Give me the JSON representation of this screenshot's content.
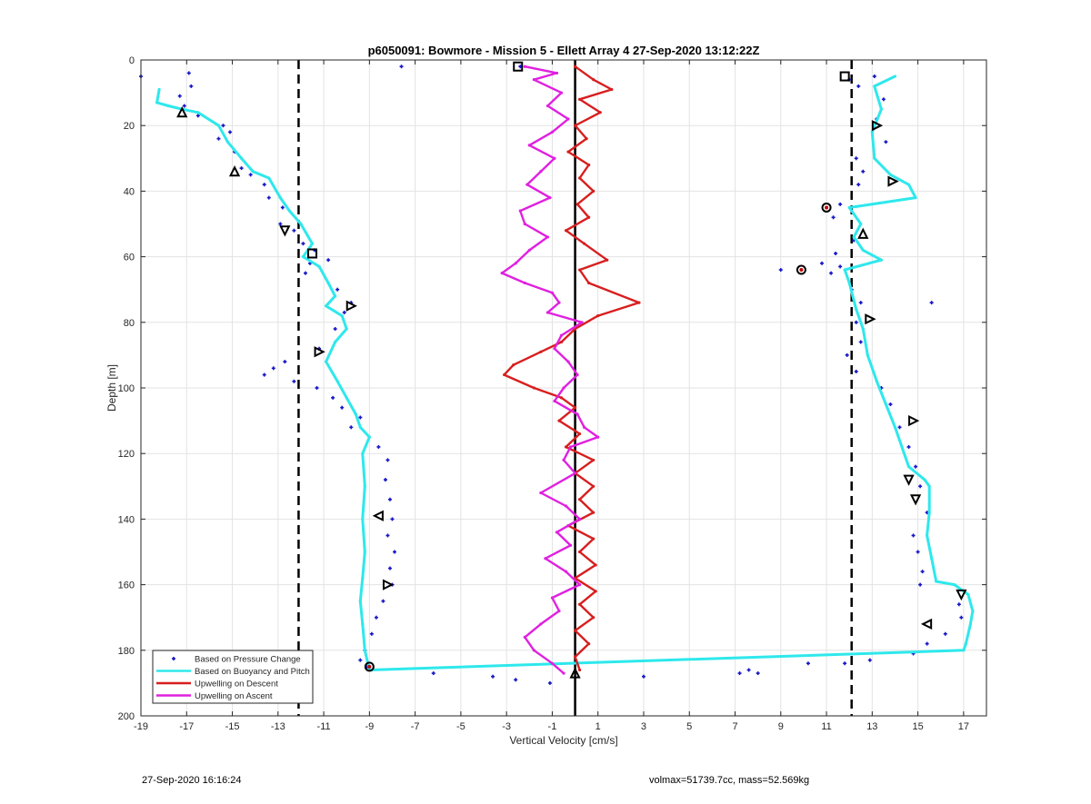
{
  "footer": {
    "left_text": "27-Sep-2020 16:16:24",
    "right_text": "volmax=51739.7cc, mass=52.569kg"
  },
  "colors": {
    "pressure": "#1515c8",
    "buoyancy": "#2ee8ec",
    "descent": "#d81e1e",
    "ascent": "#e020e0",
    "grid": "#e3e3e3",
    "axis": "#262626"
  },
  "chart_data": {
    "type": "line",
    "title": "p6050091: Bowmore - Mission 5 - Ellett Array 4 27-Sep-2020 13:12:22Z",
    "xlabel": "Vertical Velocity [cm/s]",
    "ylabel": "Depth [m]",
    "xlim": [
      -19,
      18
    ],
    "ylim": [
      0,
      200
    ],
    "y_reversed": true,
    "grid": true,
    "xticks": [
      -19,
      -17,
      -15,
      -13,
      -11,
      -9,
      -7,
      -5,
      -3,
      -1,
      1,
      3,
      5,
      7,
      9,
      11,
      13,
      15,
      17
    ],
    "yticks": [
      0,
      20,
      40,
      60,
      80,
      100,
      120,
      140,
      160,
      180,
      200
    ],
    "legend_position": "bottom-left",
    "reference_lines": [
      {
        "x": 0,
        "style": "solid"
      },
      {
        "x": -12.1,
        "style": "dashed"
      },
      {
        "x": 12.1,
        "style": "dashed"
      }
    ],
    "series": [
      {
        "name": "Based on Pressure Change",
        "style": "dots",
        "points": [
          [
            -19,
            5
          ],
          [
            -16.9,
            4
          ],
          [
            -16.8,
            8
          ],
          [
            -17.3,
            11
          ],
          [
            -17.1,
            14
          ],
          [
            -16.5,
            17
          ],
          [
            -15.4,
            20
          ],
          [
            -15.1,
            22
          ],
          [
            -15.6,
            24
          ],
          [
            -14.9,
            28
          ],
          [
            -14.6,
            33
          ],
          [
            -14.2,
            35
          ],
          [
            -13.6,
            38
          ],
          [
            -13.4,
            42
          ],
          [
            -12.8,
            45
          ],
          [
            -12.9,
            50
          ],
          [
            -12.3,
            52
          ],
          [
            -11.9,
            56
          ],
          [
            -11.4,
            58
          ],
          [
            -11.6,
            62
          ],
          [
            -11.8,
            65
          ],
          [
            -10.8,
            61
          ],
          [
            -10.4,
            70
          ],
          [
            -9.8,
            74
          ],
          [
            -10.1,
            77
          ],
          [
            -10.5,
            82
          ],
          [
            -11.2,
            88
          ],
          [
            -12.7,
            92
          ],
          [
            -13.2,
            94
          ],
          [
            -13.6,
            96
          ],
          [
            -12.3,
            98
          ],
          [
            -11.3,
            100
          ],
          [
            -10.6,
            103
          ],
          [
            -10.2,
            106
          ],
          [
            -9.4,
            109
          ],
          [
            -9.8,
            112
          ],
          [
            -8.6,
            118
          ],
          [
            -8.2,
            122
          ],
          [
            -8.3,
            128
          ],
          [
            -8.1,
            134
          ],
          [
            -8.0,
            140
          ],
          [
            -8.2,
            145
          ],
          [
            -7.9,
            150
          ],
          [
            -8.1,
            155
          ],
          [
            -8.0,
            160
          ],
          [
            -8.4,
            165
          ],
          [
            -8.7,
            170
          ],
          [
            -8.9,
            175
          ],
          [
            -9.2,
            180
          ],
          [
            -9.4,
            183
          ],
          [
            -9.1,
            185
          ],
          [
            -7.6,
            2
          ],
          [
            -2.4,
            2
          ],
          [
            -6.2,
            187
          ],
          [
            -3.6,
            188
          ],
          [
            -2.6,
            189
          ],
          [
            -1.1,
            190
          ],
          [
            3.0,
            188
          ],
          [
            7.2,
            187
          ],
          [
            7.6,
            186
          ],
          [
            8.0,
            187
          ],
          [
            10.2,
            184
          ],
          [
            11.8,
            184
          ],
          [
            12.9,
            183
          ],
          [
            12.0,
            6
          ],
          [
            12.4,
            8
          ],
          [
            13.1,
            5
          ],
          [
            13.5,
            12
          ],
          [
            13.2,
            18
          ],
          [
            13.6,
            25
          ],
          [
            12.3,
            30
          ],
          [
            12.6,
            34
          ],
          [
            12.4,
            38
          ],
          [
            11.6,
            44
          ],
          [
            11.3,
            48
          ],
          [
            12.2,
            55
          ],
          [
            11.4,
            59
          ],
          [
            11.6,
            63
          ],
          [
            11.2,
            65
          ],
          [
            10.8,
            62
          ],
          [
            9.0,
            64
          ],
          [
            12.1,
            70
          ],
          [
            12.5,
            74
          ],
          [
            12.3,
            80
          ],
          [
            12.5,
            86
          ],
          [
            11.9,
            90
          ],
          [
            12.3,
            95
          ],
          [
            13.4,
            100
          ],
          [
            13.8,
            105
          ],
          [
            14.2,
            112
          ],
          [
            14.6,
            118
          ],
          [
            14.9,
            124
          ],
          [
            15.1,
            130
          ],
          [
            15.4,
            138
          ],
          [
            14.8,
            145
          ],
          [
            15.0,
            150
          ],
          [
            15.2,
            156
          ],
          [
            15.1,
            160
          ],
          [
            16.8,
            166
          ],
          [
            16.9,
            170
          ],
          [
            16.2,
            175
          ],
          [
            15.4,
            178
          ],
          [
            14.8,
            181
          ],
          [
            15.6,
            74
          ]
        ]
      },
      {
        "name": "Based on Buoyancy and Pitch",
        "style": "line",
        "points": [
          [
            -18.2,
            9
          ],
          [
            -18.3,
            13
          ],
          [
            -17.8,
            14
          ],
          [
            -17.2,
            15
          ],
          [
            -16.5,
            16
          ],
          [
            -15.6,
            20
          ],
          [
            -15.2,
            25
          ],
          [
            -14.6,
            30
          ],
          [
            -14.1,
            34
          ],
          [
            -13.4,
            36
          ],
          [
            -12.9,
            42
          ],
          [
            -12.5,
            46
          ],
          [
            -12.0,
            50
          ],
          [
            -11.5,
            56
          ],
          [
            -11.9,
            60
          ],
          [
            -11.2,
            63
          ],
          [
            -10.8,
            68
          ],
          [
            -10.5,
            72
          ],
          [
            -10.9,
            75
          ],
          [
            -10.2,
            78
          ],
          [
            -10.0,
            82
          ],
          [
            -10.5,
            86
          ],
          [
            -10.9,
            92
          ],
          [
            -10.4,
            98
          ],
          [
            -10.0,
            103
          ],
          [
            -9.6,
            108
          ],
          [
            -9.4,
            112
          ],
          [
            -9.0,
            115
          ],
          [
            -9.3,
            120
          ],
          [
            -9.2,
            130
          ],
          [
            -9.3,
            140
          ],
          [
            -9.2,
            150
          ],
          [
            -9.3,
            158
          ],
          [
            -9.4,
            165
          ],
          [
            -9.3,
            172
          ],
          [
            -9.2,
            180
          ],
          [
            -9.0,
            186
          ],
          [
            17.0,
            180
          ],
          [
            17.1,
            178
          ],
          [
            17.3,
            172
          ],
          [
            17.4,
            168
          ],
          [
            17.2,
            163
          ],
          [
            16.6,
            160
          ],
          [
            15.8,
            159
          ],
          [
            15.6,
            152
          ],
          [
            15.4,
            145
          ],
          [
            15.5,
            138
          ],
          [
            15.5,
            130
          ],
          [
            15.3,
            128
          ],
          [
            14.6,
            124
          ],
          [
            14.3,
            118
          ],
          [
            14.0,
            112
          ],
          [
            13.6,
            105
          ],
          [
            13.2,
            98
          ],
          [
            12.8,
            90
          ],
          [
            12.6,
            82
          ],
          [
            12.3,
            76
          ],
          [
            12.0,
            68
          ],
          [
            11.8,
            64
          ],
          [
            13.4,
            61
          ],
          [
            12.6,
            58
          ],
          [
            12.2,
            54
          ],
          [
            12.5,
            50
          ],
          [
            12.0,
            45
          ],
          [
            14.9,
            42
          ],
          [
            14.6,
            38
          ],
          [
            13.8,
            35
          ],
          [
            13.1,
            30
          ],
          [
            13.0,
            22
          ],
          [
            13.4,
            15
          ],
          [
            13.1,
            8
          ],
          [
            14.0,
            5
          ]
        ]
      },
      {
        "name": "Upwelling on Descent",
        "style": "line",
        "points": [
          [
            0,
            2
          ],
          [
            0.8,
            6
          ],
          [
            1.6,
            9
          ],
          [
            0.2,
            12
          ],
          [
            1.1,
            16
          ],
          [
            0.0,
            20
          ],
          [
            0.5,
            24
          ],
          [
            -0.3,
            28
          ],
          [
            0.6,
            32
          ],
          [
            0.2,
            36
          ],
          [
            0.8,
            40
          ],
          [
            0.1,
            44
          ],
          [
            0.6,
            48
          ],
          [
            -0.4,
            52
          ],
          [
            0.4,
            56
          ],
          [
            1.4,
            61
          ],
          [
            0.2,
            64
          ],
          [
            0.6,
            68
          ],
          [
            2.8,
            74
          ],
          [
            1.0,
            78
          ],
          [
            0.0,
            82
          ],
          [
            -0.6,
            86
          ],
          [
            -1.5,
            89
          ],
          [
            -2.7,
            93
          ],
          [
            -3.1,
            96
          ],
          [
            -1.8,
            100
          ],
          [
            -0.6,
            103
          ],
          [
            0.0,
            106
          ],
          [
            -0.7,
            110
          ],
          [
            0.2,
            114
          ],
          [
            -0.4,
            118
          ],
          [
            0.8,
            122
          ],
          [
            0.0,
            126
          ],
          [
            0.8,
            130
          ],
          [
            0.2,
            134
          ],
          [
            0.8,
            138
          ],
          [
            -0.3,
            142
          ],
          [
            0.8,
            146
          ],
          [
            0.2,
            150
          ],
          [
            0.9,
            154
          ],
          [
            0.0,
            158
          ],
          [
            0.9,
            162
          ],
          [
            0.2,
            166
          ],
          [
            0.8,
            170
          ],
          [
            0.0,
            174
          ],
          [
            0.6,
            178
          ],
          [
            0.0,
            182
          ],
          [
            0.2,
            186
          ]
        ]
      },
      {
        "name": "Upwelling on Ascent",
        "style": "line",
        "points": [
          [
            -2.2,
            2
          ],
          [
            -0.8,
            4
          ],
          [
            -1.8,
            6
          ],
          [
            -0.6,
            10
          ],
          [
            -1.2,
            14
          ],
          [
            -0.3,
            18
          ],
          [
            -1.0,
            22
          ],
          [
            -2.0,
            26
          ],
          [
            -0.9,
            30
          ],
          [
            -1.5,
            34
          ],
          [
            -2.1,
            38
          ],
          [
            -1.1,
            42
          ],
          [
            -2.4,
            46
          ],
          [
            -2.2,
            50
          ],
          [
            -1.2,
            54
          ],
          [
            -2.0,
            58
          ],
          [
            -2.6,
            62
          ],
          [
            -3.2,
            65
          ],
          [
            -2.2,
            68
          ],
          [
            -1.0,
            71
          ],
          [
            -0.7,
            74
          ],
          [
            -1.2,
            77
          ],
          [
            0.3,
            80
          ],
          [
            -0.6,
            84
          ],
          [
            -0.9,
            88
          ],
          [
            -0.3,
            92
          ],
          [
            0.1,
            96
          ],
          [
            -0.5,
            100
          ],
          [
            -0.9,
            104
          ],
          [
            0.1,
            108
          ],
          [
            0.4,
            112
          ],
          [
            1.0,
            115
          ],
          [
            -0.2,
            118
          ],
          [
            -0.5,
            122
          ],
          [
            0.0,
            126
          ],
          [
            -1.5,
            132
          ],
          [
            -0.4,
            136
          ],
          [
            0.2,
            140
          ],
          [
            -0.8,
            144
          ],
          [
            -0.2,
            148
          ],
          [
            -1.3,
            152
          ],
          [
            -0.4,
            156
          ],
          [
            0.2,
            160
          ],
          [
            -1.0,
            164
          ],
          [
            -0.7,
            168
          ],
          [
            -1.5,
            172
          ],
          [
            -2.2,
            176
          ],
          [
            -1.8,
            180
          ],
          [
            -1.0,
            184
          ],
          [
            -0.5,
            187
          ]
        ]
      }
    ],
    "markers": [
      {
        "x": -17.2,
        "y": 16,
        "shape": "triangle-up"
      },
      {
        "x": -14.9,
        "y": 34,
        "shape": "triangle-up"
      },
      {
        "x": -12.7,
        "y": 52,
        "shape": "triangle-down"
      },
      {
        "x": -11.5,
        "y": 59,
        "shape": "square"
      },
      {
        "x": -9.8,
        "y": 75,
        "shape": "triangle-right"
      },
      {
        "x": -11.2,
        "y": 89,
        "shape": "triangle-right"
      },
      {
        "x": -8.6,
        "y": 139,
        "shape": "triangle-left"
      },
      {
        "x": -8.2,
        "y": 160,
        "shape": "triangle-right"
      },
      {
        "x": -9.0,
        "y": 185,
        "shape": "circle"
      },
      {
        "x": -2.5,
        "y": 2,
        "shape": "square"
      },
      {
        "x": 0.0,
        "y": 187,
        "shape": "triangle-up"
      },
      {
        "x": 11.8,
        "y": 5,
        "shape": "square"
      },
      {
        "x": 13.2,
        "y": 20,
        "shape": "triangle-right"
      },
      {
        "x": 13.9,
        "y": 37,
        "shape": "triangle-right"
      },
      {
        "x": 11.0,
        "y": 45,
        "shape": "circle"
      },
      {
        "x": 12.6,
        "y": 53,
        "shape": "triangle-up"
      },
      {
        "x": 9.9,
        "y": 64,
        "shape": "circle"
      },
      {
        "x": 12.9,
        "y": 79,
        "shape": "triangle-right"
      },
      {
        "x": 14.8,
        "y": 110,
        "shape": "triangle-right"
      },
      {
        "x": 14.6,
        "y": 128,
        "shape": "triangle-down"
      },
      {
        "x": 14.9,
        "y": 134,
        "shape": "triangle-down"
      },
      {
        "x": 16.9,
        "y": 163,
        "shape": "triangle-down"
      },
      {
        "x": 15.4,
        "y": 172,
        "shape": "triangle-left"
      }
    ]
  }
}
